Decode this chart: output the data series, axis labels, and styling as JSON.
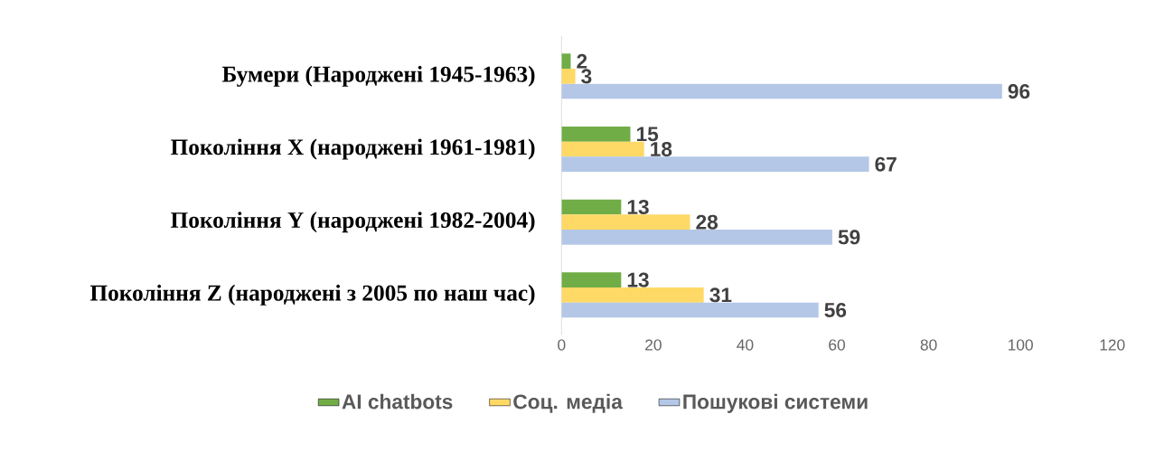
{
  "chart_data": {
    "type": "bar",
    "orientation": "horizontal",
    "categories": [
      "Бумери (Народжені 1945-1963)",
      "Покоління X (народжені 1961-1981)",
      "Покоління Y (народжені 1982-2004)",
      "Покоління Z (народжені з 2005 по наш час)"
    ],
    "series": [
      {
        "name": "AI chatbots",
        "color": "#70ad47",
        "values": [
          2,
          15,
          13,
          13
        ]
      },
      {
        "name": "Соц. медіа",
        "color": "#ffd966",
        "values": [
          3,
          18,
          28,
          31
        ]
      },
      {
        "name": "Пошукові системи",
        "color": "#b4c7e7",
        "values": [
          96,
          67,
          59,
          56
        ]
      }
    ],
    "xlim": [
      0,
      120
    ],
    "xticks": [
      0,
      20,
      40,
      60,
      80,
      100,
      120
    ],
    "data_labels": true,
    "legend": "bottom",
    "grid": false
  }
}
